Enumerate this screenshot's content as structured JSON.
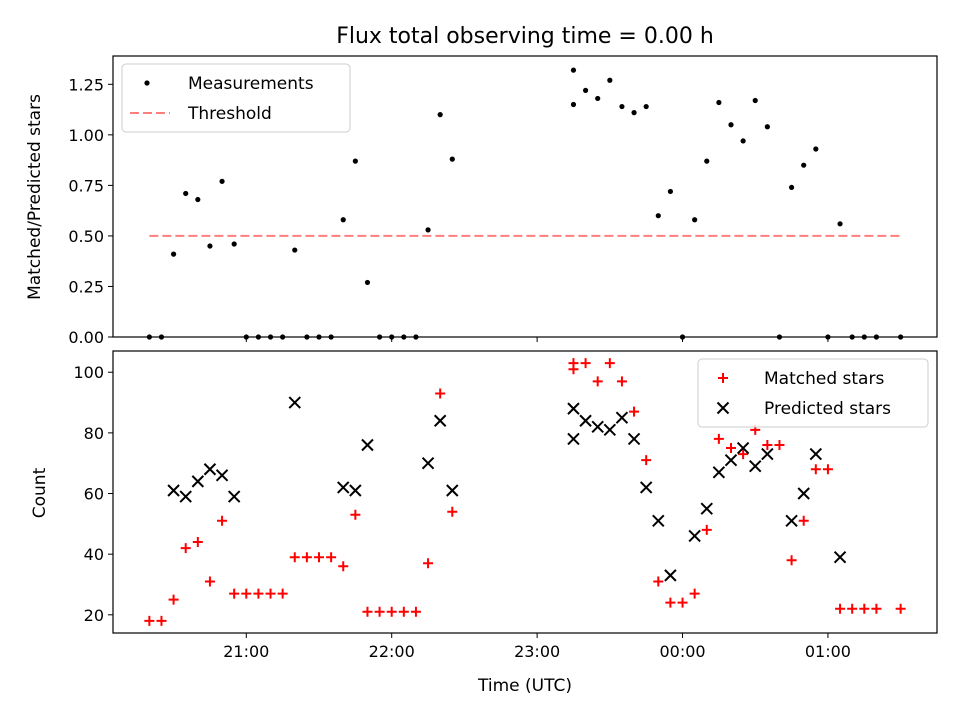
{
  "title": "Flux total observing time = 0.00 h",
  "chart_data": [
    {
      "type": "scatter",
      "name": "top",
      "ylabel": "Matched/Predicted stars",
      "ylim": [
        0,
        1.39
      ],
      "yticks": [
        0.0,
        0.25,
        0.5,
        0.75,
        1.0,
        1.25
      ],
      "ytick_labels": [
        "0.00",
        "0.25",
        "0.50",
        "0.75",
        "1.00",
        "1.25"
      ],
      "legend": {
        "position": "top-left"
      },
      "series": [
        {
          "name": "Measurements",
          "marker": "dot",
          "color": "#000000",
          "points": [
            [
              "20:20",
              0.0
            ],
            [
              "20:25",
              0.0
            ],
            [
              "20:30",
              0.41
            ],
            [
              "20:35",
              0.71
            ],
            [
              "20:40",
              0.68
            ],
            [
              "20:45",
              0.45
            ],
            [
              "20:50",
              0.77
            ],
            [
              "20:55",
              0.46
            ],
            [
              "21:00",
              0.0
            ],
            [
              "21:05",
              0.0
            ],
            [
              "21:10",
              0.0
            ],
            [
              "21:15",
              0.0
            ],
            [
              "21:20",
              0.43
            ],
            [
              "21:25",
              0.0
            ],
            [
              "21:30",
              0.0
            ],
            [
              "21:35",
              0.0
            ],
            [
              "21:40",
              0.58
            ],
            [
              "21:45",
              0.87
            ],
            [
              "21:50",
              0.27
            ],
            [
              "21:55",
              0.0
            ],
            [
              "22:00",
              0.0
            ],
            [
              "22:05",
              0.0
            ],
            [
              "22:10",
              0.0
            ],
            [
              "22:15",
              0.53
            ],
            [
              "22:20",
              1.1
            ],
            [
              "22:25",
              0.88
            ],
            [
              "23:15",
              1.15
            ],
            [
              "23:15",
              1.32
            ],
            [
              "23:20",
              1.22
            ],
            [
              "23:25",
              1.18
            ],
            [
              "23:30",
              1.27
            ],
            [
              "23:35",
              1.14
            ],
            [
              "23:40",
              1.11
            ],
            [
              "23:45",
              1.14
            ],
            [
              "23:50",
              0.6
            ],
            [
              "23:55",
              0.72
            ],
            [
              "00:00",
              0.0
            ],
            [
              "00:05",
              0.58
            ],
            [
              "00:10",
              0.87
            ],
            [
              "00:15",
              1.16
            ],
            [
              "00:20",
              1.05
            ],
            [
              "00:25",
              0.97
            ],
            [
              "00:30",
              1.17
            ],
            [
              "00:35",
              1.04
            ],
            [
              "00:40",
              0.0
            ],
            [
              "00:45",
              0.74
            ],
            [
              "00:50",
              0.85
            ],
            [
              "00:55",
              0.93
            ],
            [
              "01:00",
              0.0
            ],
            [
              "01:05",
              0.56
            ],
            [
              "01:10",
              0.0
            ],
            [
              "01:15",
              0.0
            ],
            [
              "01:20",
              0.0
            ],
            [
              "01:30",
              0.0
            ]
          ]
        },
        {
          "name": "Threshold",
          "marker": "dashed-line",
          "color": "#ff7f7f",
          "points": [
            [
              "20:20",
              0.5
            ],
            [
              "01:30",
              0.5
            ]
          ]
        }
      ]
    },
    {
      "type": "scatter",
      "name": "bottom",
      "xlabel": "Time (UTC)",
      "ylabel": "Count",
      "xlim": [
        "20:05",
        "01:45"
      ],
      "xticks": [
        "21:00",
        "22:00",
        "23:00",
        "00:00",
        "01:00"
      ],
      "ylim": [
        14,
        107
      ],
      "yticks": [
        20,
        40,
        60,
        80,
        100
      ],
      "legend": {
        "position": "top-right"
      },
      "series": [
        {
          "name": "Matched stars",
          "marker": "plus",
          "color": "#ff0000",
          "points": [
            [
              "20:20",
              18
            ],
            [
              "20:25",
              18
            ],
            [
              "20:30",
              25
            ],
            [
              "20:35",
              42
            ],
            [
              "20:40",
              44
            ],
            [
              "20:45",
              31
            ],
            [
              "20:50",
              51
            ],
            [
              "20:55",
              27
            ],
            [
              "21:00",
              27
            ],
            [
              "21:05",
              27
            ],
            [
              "21:10",
              27
            ],
            [
              "21:15",
              27
            ],
            [
              "21:20",
              39
            ],
            [
              "21:25",
              39
            ],
            [
              "21:30",
              39
            ],
            [
              "21:35",
              39
            ],
            [
              "21:40",
              36
            ],
            [
              "21:45",
              53
            ],
            [
              "21:50",
              21
            ],
            [
              "21:55",
              21
            ],
            [
              "22:00",
              21
            ],
            [
              "22:05",
              21
            ],
            [
              "22:10",
              21
            ],
            [
              "22:15",
              37
            ],
            [
              "22:20",
              93
            ],
            [
              "22:25",
              54
            ],
            [
              "23:15",
              101
            ],
            [
              "23:15",
              103
            ],
            [
              "23:20",
              103
            ],
            [
              "23:25",
              97
            ],
            [
              "23:30",
              103
            ],
            [
              "23:35",
              97
            ],
            [
              "23:40",
              87
            ],
            [
              "23:45",
              71
            ],
            [
              "23:50",
              31
            ],
            [
              "23:55",
              24
            ],
            [
              "00:00",
              24
            ],
            [
              "00:05",
              27
            ],
            [
              "00:10",
              48
            ],
            [
              "00:15",
              78
            ],
            [
              "00:20",
              75
            ],
            [
              "00:25",
              73
            ],
            [
              "00:30",
              81
            ],
            [
              "00:35",
              76
            ],
            [
              "00:40",
              76
            ],
            [
              "00:45",
              38
            ],
            [
              "00:50",
              51
            ],
            [
              "00:55",
              68
            ],
            [
              "01:00",
              68
            ],
            [
              "01:05",
              22
            ],
            [
              "01:10",
              22
            ],
            [
              "01:15",
              22
            ],
            [
              "01:20",
              22
            ],
            [
              "01:30",
              22
            ]
          ]
        },
        {
          "name": "Predicted stars",
          "marker": "x",
          "color": "#000000",
          "points": [
            [
              "20:30",
              61
            ],
            [
              "20:35",
              59
            ],
            [
              "20:40",
              64
            ],
            [
              "20:45",
              68
            ],
            [
              "20:50",
              66
            ],
            [
              "20:55",
              59
            ],
            [
              "21:20",
              90
            ],
            [
              "21:40",
              62
            ],
            [
              "21:45",
              61
            ],
            [
              "21:50",
              76
            ],
            [
              "22:15",
              70
            ],
            [
              "22:20",
              84
            ],
            [
              "22:25",
              61
            ],
            [
              "23:15",
              88
            ],
            [
              "23:15",
              78
            ],
            [
              "23:20",
              84
            ],
            [
              "23:25",
              82
            ],
            [
              "23:30",
              81
            ],
            [
              "23:35",
              85
            ],
            [
              "23:40",
              78
            ],
            [
              "23:45",
              62
            ],
            [
              "23:50",
              51
            ],
            [
              "23:55",
              33
            ],
            [
              "00:05",
              46
            ],
            [
              "00:10",
              55
            ],
            [
              "00:15",
              67
            ],
            [
              "00:20",
              71
            ],
            [
              "00:25",
              75
            ],
            [
              "00:30",
              69
            ],
            [
              "00:35",
              73
            ],
            [
              "00:45",
              51
            ],
            [
              "00:50",
              60
            ],
            [
              "00:55",
              73
            ],
            [
              "01:05",
              39
            ]
          ]
        }
      ]
    }
  ]
}
